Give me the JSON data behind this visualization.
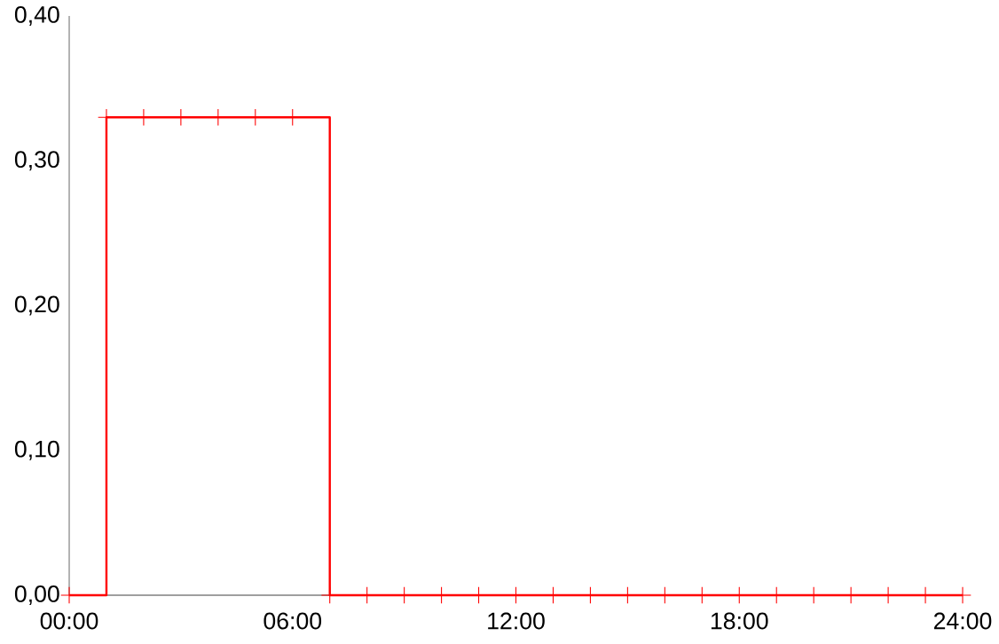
{
  "chart_data": {
    "type": "step",
    "x": [
      0,
      1,
      2,
      3,
      4,
      5,
      6,
      7,
      8,
      9,
      10,
      11,
      12,
      13,
      14,
      15,
      16,
      17,
      18,
      19,
      20,
      21,
      22,
      23,
      24
    ],
    "values": [
      0,
      0.33,
      0.33,
      0.33,
      0.33,
      0.33,
      0.33,
      0,
      0,
      0,
      0,
      0,
      0,
      0,
      0,
      0,
      0,
      0,
      0,
      0,
      0,
      0,
      0,
      0,
      0
    ],
    "color": "#ff0000",
    "marker": "cross",
    "line_style": "solid",
    "xlim": [
      0,
      24
    ],
    "ylim": [
      0,
      0.4
    ],
    "xticks": [
      {
        "value": 0,
        "label": "00:00"
      },
      {
        "value": 6,
        "label": "06:00"
      },
      {
        "value": 12,
        "label": "12:00"
      },
      {
        "value": 18,
        "label": "18:00"
      },
      {
        "value": 24,
        "label": "24:00"
      }
    ],
    "yticks": [
      {
        "value": 0,
        "label": "0,00"
      },
      {
        "value": 0.1,
        "label": "0,10"
      },
      {
        "value": 0.2,
        "label": "0,20"
      },
      {
        "value": 0.3,
        "label": "0,30"
      },
      {
        "value": 0.4,
        "label": "0,40"
      }
    ]
  }
}
